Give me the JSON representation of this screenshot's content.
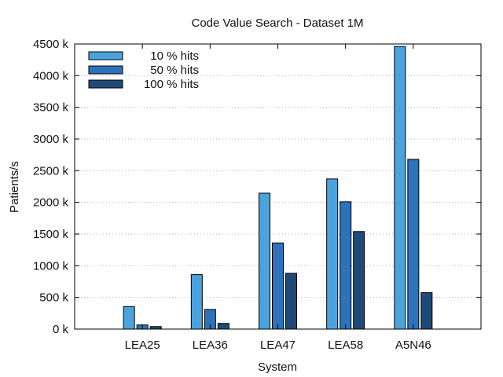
{
  "chart_data": {
    "type": "bar",
    "title": "Code Value Search - Dataset 1M",
    "xlabel": "System",
    "ylabel": "Patients/s",
    "categories": [
      "LEA25",
      "LEA36",
      "LEA47",
      "LEA58",
      "A5N46"
    ],
    "ylim": [
      0,
      4500000
    ],
    "yticks": [
      0,
      500000,
      1000000,
      1500000,
      2000000,
      2500000,
      3000000,
      3500000,
      4000000,
      4500000
    ],
    "ytick_labels": [
      "0 k",
      "500 k",
      "1000 k",
      "1500 k",
      "2000 k",
      "2500 k",
      "3000 k",
      "3500 k",
      "4000 k",
      "4500 k"
    ],
    "grid": true,
    "legend_position": "top-left",
    "series": [
      {
        "name": "10 % hits",
        "color": "#4aa3dd",
        "values": [
          355000,
          860000,
          2145000,
          2370000,
          4460000
        ]
      },
      {
        "name": "50 % hits",
        "color": "#2e72bc",
        "values": [
          65000,
          310000,
          1360000,
          2010000,
          2680000
        ]
      },
      {
        "name": "100 % hits",
        "color": "#1f4a78",
        "values": [
          40000,
          90000,
          880000,
          1540000,
          575000
        ]
      }
    ]
  }
}
